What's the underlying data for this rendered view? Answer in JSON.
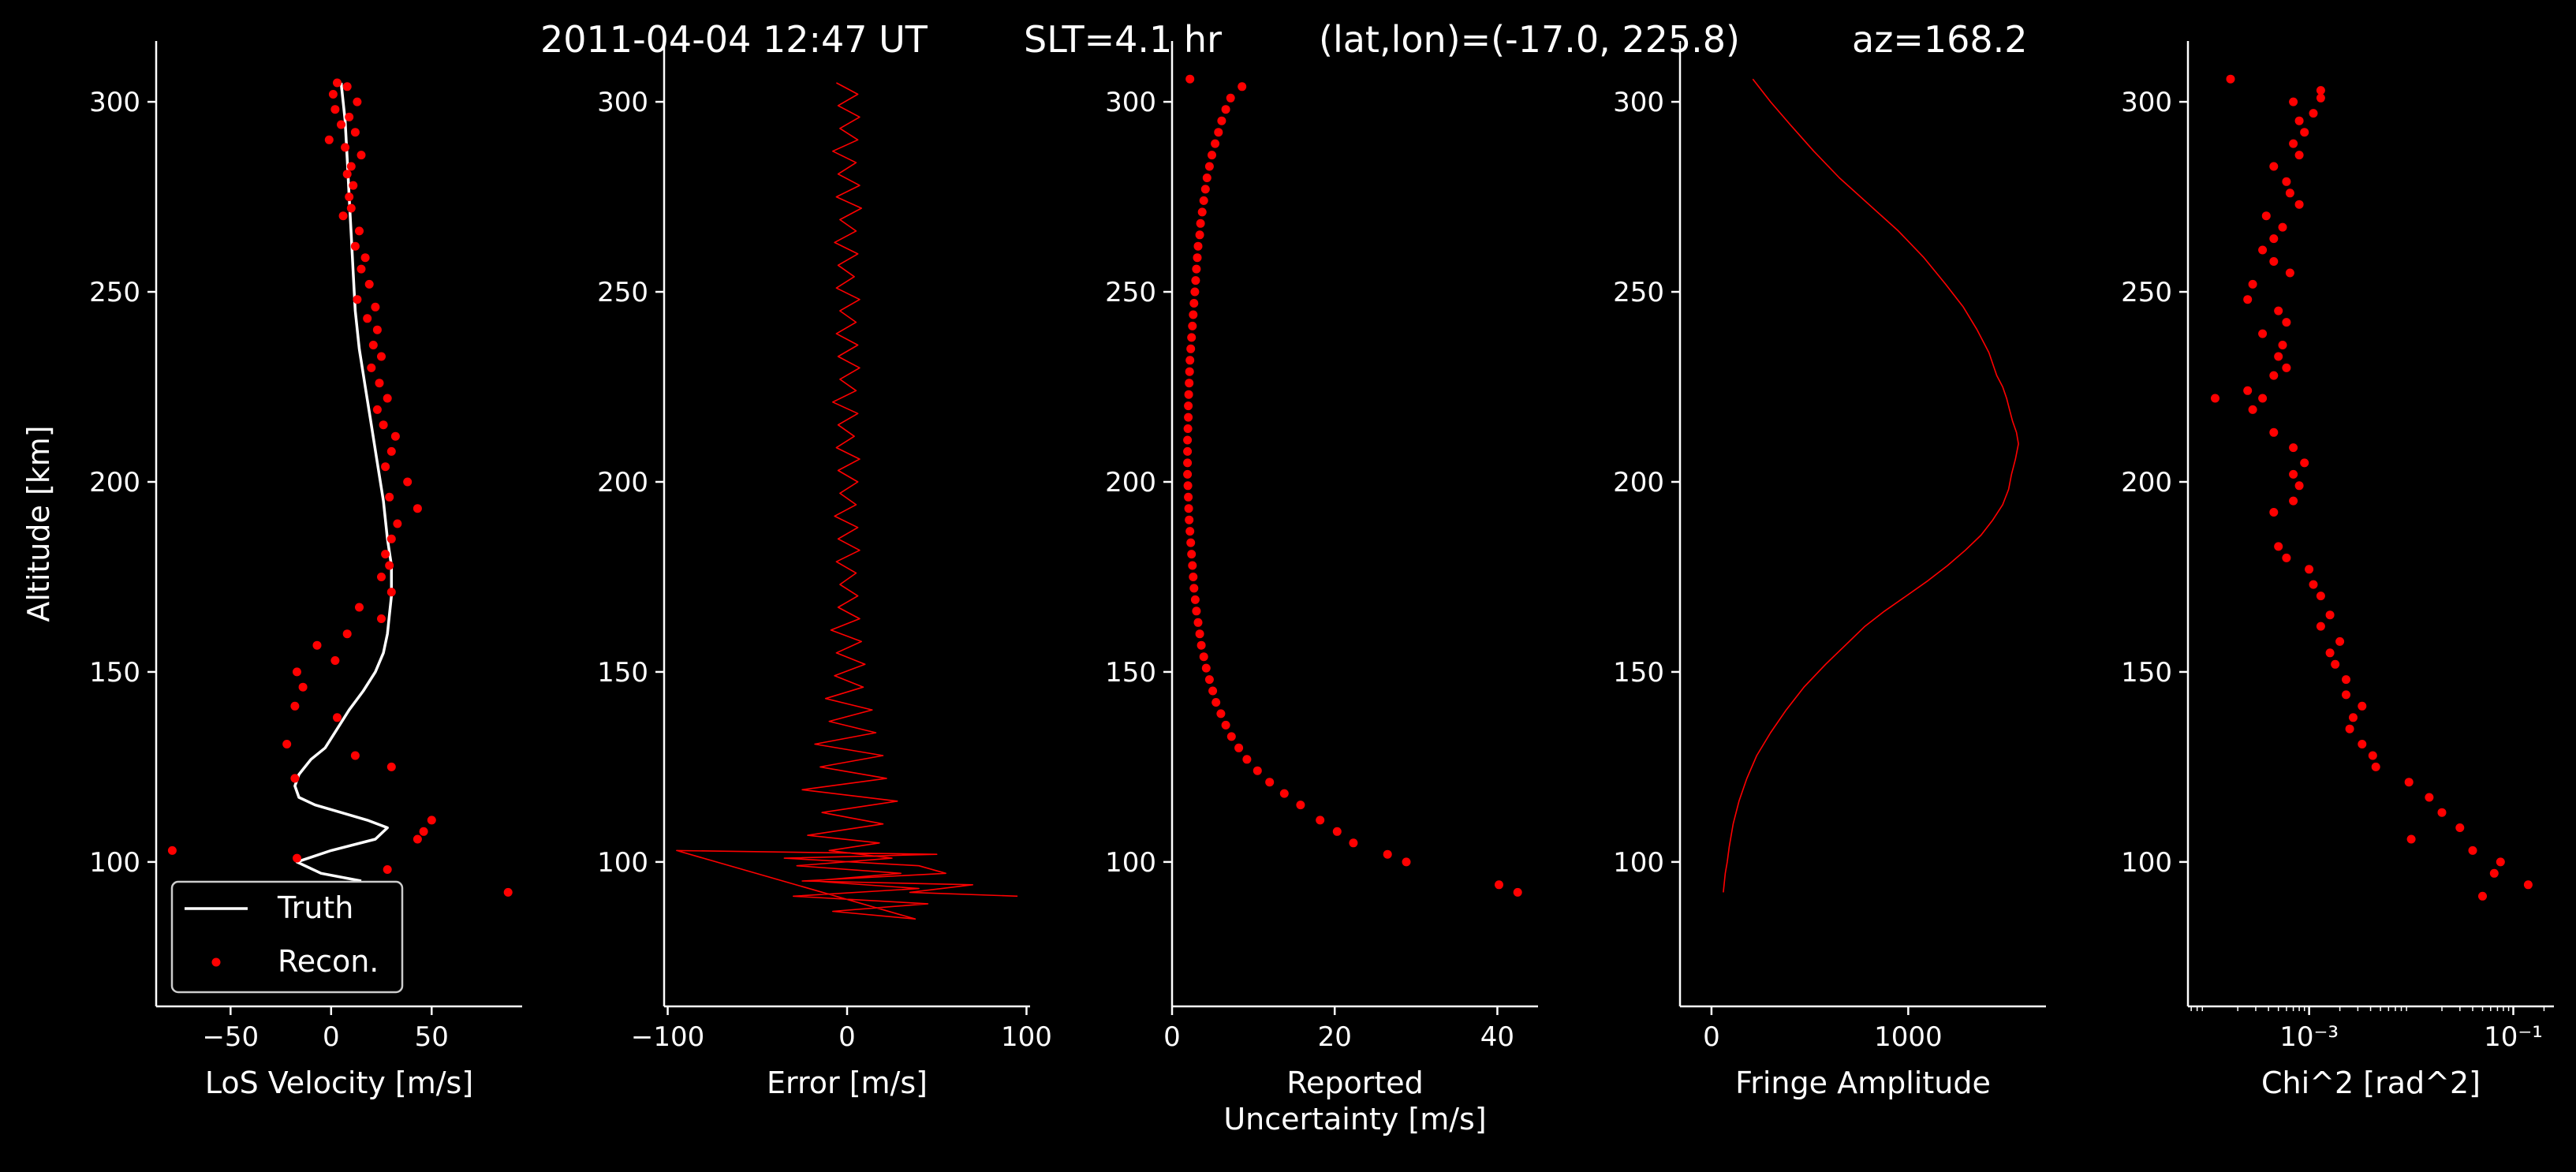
{
  "header": {
    "time": "2011-04-04 12:47 UT",
    "slt": "SLT=4.1 hr",
    "latlon": "(lat,lon)=(-17.0, 225.8)",
    "az": "az=168.2"
  },
  "colors": {
    "background": "#000000",
    "foreground": "#ffffff",
    "recon": "#ff0000",
    "truth": "#ffffff"
  },
  "chart_data": [
    {
      "type": "line",
      "xlabel": "LoS Velocity [m/s]",
      "ylabel": "Altitude [km]",
      "xlim": [
        -87,
        95
      ],
      "ylim": [
        62,
        316
      ],
      "xticks": [
        {
          "v": -50,
          "label": "−50"
        },
        {
          "v": 0,
          "label": "0"
        },
        {
          "v": 50,
          "label": "50"
        }
      ],
      "yticks": [
        100,
        150,
        200,
        250,
        300
      ],
      "legend": {
        "placement": "lower-left",
        "entries": [
          "Truth",
          "Recon."
        ]
      },
      "series": [
        {
          "name": "Truth",
          "style": "line",
          "color": "#ffffff",
          "x": [
            5,
            7,
            8,
            9,
            10,
            11,
            12,
            14,
            17,
            20,
            23,
            26,
            28,
            30,
            30,
            29,
            28,
            26,
            22,
            16,
            9,
            3,
            -3,
            -10,
            -16,
            -18,
            -16,
            -8,
            5,
            18,
            28,
            22,
            0,
            -17,
            -5,
            15
          ],
          "y": [
            305,
            295,
            285,
            275,
            265,
            255,
            245,
            235,
            225,
            215,
            205,
            195,
            185,
            178,
            170,
            165,
            160,
            155,
            150,
            145,
            140,
            135,
            130,
            127,
            123,
            120,
            117,
            115,
            113,
            111,
            109,
            106,
            103,
            100,
            97,
            95
          ]
        },
        {
          "name": "Recon.",
          "style": "scatter",
          "color": "#ff0000",
          "x": [
            3,
            8,
            1,
            13,
            2,
            9,
            5,
            12,
            -1,
            7,
            15,
            10,
            8,
            11,
            9,
            10,
            6,
            14,
            12,
            17,
            15,
            19,
            13,
            22,
            18,
            23,
            21,
            25,
            20,
            24,
            28,
            23,
            26,
            32,
            30,
            27,
            38,
            29,
            43,
            33,
            30,
            27,
            29,
            25,
            30,
            14,
            25,
            8,
            -7,
            2,
            -17,
            -14,
            -18,
            3,
            -22,
            12,
            30,
            -18,
            50,
            46,
            43,
            -79,
            -17,
            28,
            88
          ],
          "y": [
            305,
            304,
            302,
            300,
            298,
            296,
            294,
            292,
            290,
            288,
            286,
            283,
            281,
            278,
            275,
            272,
            270,
            266,
            262,
            259,
            256,
            252,
            248,
            246,
            243,
            240,
            236,
            233,
            230,
            226,
            222,
            219,
            215,
            212,
            208,
            204,
            200,
            196,
            193,
            189,
            185,
            181,
            178,
            175,
            171,
            167,
            164,
            160,
            157,
            153,
            150,
            146,
            141,
            138,
            131,
            128,
            125,
            122,
            111,
            108,
            106,
            103,
            101,
            98,
            92
          ]
        }
      ]
    },
    {
      "type": "line",
      "xlabel": "Error [m/s]",
      "xlim": [
        -102,
        102
      ],
      "ylim": [
        62,
        316
      ],
      "xticks": [
        {
          "v": -100,
          "label": "−100"
        },
        {
          "v": 0,
          "label": "0"
        },
        {
          "v": 100,
          "label": "100"
        }
      ],
      "yticks": [
        100,
        150,
        200,
        250,
        300
      ],
      "series": [
        {
          "style": "line",
          "color": "#ff0000",
          "x": [
            -6,
            6,
            -5,
            7,
            -4,
            6,
            -8,
            5,
            -5,
            7,
            -6,
            8,
            -4,
            5,
            -7,
            6,
            -5,
            4,
            -6,
            7,
            -4,
            5,
            -6,
            6,
            -5,
            7,
            -4,
            5,
            -8,
            6,
            -5,
            4,
            -6,
            7,
            -5,
            6,
            -4,
            5,
            -7,
            6,
            -5,
            7,
            -6,
            5,
            -4,
            6,
            -5,
            7,
            -9,
            8,
            -6,
            10,
            -7,
            9,
            -12,
            14,
            -10,
            16,
            -18,
            20,
            -15,
            22,
            -25,
            28,
            -14,
            20,
            -22,
            18,
            -10,
            25,
            -28,
            30,
            -20,
            40,
            -30,
            45,
            -8,
            38,
            -95,
            50,
            -35,
            40,
            55,
            -25,
            70,
            35,
            95
          ],
          "y": [
            305,
            302,
            299,
            296,
            293,
            290,
            287,
            284,
            281,
            278,
            275,
            272,
            269,
            266,
            263,
            260,
            257,
            254,
            251,
            248,
            245,
            242,
            239,
            236,
            233,
            230,
            227,
            224,
            221,
            218,
            215,
            212,
            209,
            206,
            203,
            200,
            197,
            194,
            191,
            188,
            185,
            182,
            179,
            176,
            173,
            170,
            167,
            164,
            161,
            158,
            155,
            152,
            149,
            146,
            143,
            140,
            137,
            134,
            131,
            128,
            125,
            122,
            119,
            116,
            113,
            110,
            107,
            105,
            103,
            101,
            99,
            97,
            95,
            93,
            91,
            89,
            87,
            85,
            103,
            102,
            101,
            99,
            97,
            95,
            94,
            92,
            91
          ]
        }
      ]
    },
    {
      "type": "scatter",
      "xlabel": "Reported\nUncertainty [m/s]",
      "xlim": [
        0,
        45
      ],
      "ylim": [
        62,
        316
      ],
      "xticks": [
        {
          "v": 0,
          "label": "0"
        },
        {
          "v": 20,
          "label": "20"
        },
        {
          "v": 40,
          "label": "40"
        }
      ],
      "yticks": [
        100,
        150,
        200,
        250,
        300
      ],
      "series": [
        {
          "style": "scatter",
          "color": "#ff0000",
          "x": [
            2.2,
            8.6,
            7.2,
            6.6,
            6.1,
            5.7,
            5.3,
            4.9,
            4.6,
            4.3,
            4.1,
            3.9,
            3.7,
            3.5,
            3.4,
            3.2,
            3.1,
            3.0,
            2.9,
            2.8,
            2.7,
            2.6,
            2.5,
            2.4,
            2.3,
            2.2,
            2.15,
            2.1,
            2.05,
            2.0,
            2.0,
            1.95,
            1.9,
            1.9,
            1.9,
            1.9,
            1.95,
            2.0,
            2.05,
            2.1,
            2.2,
            2.3,
            2.4,
            2.5,
            2.6,
            2.7,
            2.85,
            3.0,
            3.2,
            3.4,
            3.6,
            3.9,
            4.2,
            4.6,
            5.0,
            5.4,
            6.0,
            6.6,
            7.3,
            8.2,
            9.2,
            10.5,
            12.0,
            13.8,
            15.8,
            18.2,
            20.3,
            22.3,
            26.5,
            28.8,
            40.2,
            42.5
          ],
          "y": [
            306,
            304,
            301,
            298,
            295,
            292,
            289,
            286,
            283,
            280,
            277,
            274,
            271,
            268,
            265,
            262,
            259,
            256,
            253,
            250,
            247,
            244,
            241,
            238,
            235,
            232,
            229,
            226,
            223,
            220,
            217,
            214,
            211,
            208,
            205,
            202,
            199,
            196,
            193,
            190,
            187,
            184,
            181,
            178,
            175,
            172,
            169,
            166,
            163,
            160,
            157,
            154,
            151,
            148,
            145,
            142,
            139,
            136,
            133,
            130,
            127,
            124,
            121,
            118,
            115,
            111,
            108,
            105,
            102,
            100,
            94,
            92
          ]
        }
      ]
    },
    {
      "type": "line",
      "xlabel": "Fringe Amplitude",
      "xlim": [
        -160,
        1700
      ],
      "ylim": [
        62,
        316
      ],
      "xticks": [
        {
          "v": 0,
          "label": "0"
        },
        {
          "v": 1000,
          "label": "1000"
        }
      ],
      "yticks": [
        100,
        150,
        200,
        250,
        300
      ],
      "series": [
        {
          "style": "line",
          "color": "#ff0000",
          "x": [
            210,
            300,
            400,
            520,
            650,
            800,
            950,
            1080,
            1190,
            1280,
            1350,
            1410,
            1450,
            1480,
            1500,
            1515,
            1530,
            1550,
            1560,
            1545,
            1525,
            1510,
            1480,
            1430,
            1370,
            1290,
            1200,
            1100,
            990,
            880,
            780,
            700,
            580,
            470,
            380,
            300,
            230,
            180,
            140,
            110,
            90,
            80,
            70,
            60
          ],
          "y": [
            306,
            300,
            294,
            287,
            280,
            273,
            266,
            259,
            252,
            246,
            240,
            234,
            228,
            225,
            222,
            219,
            216,
            213,
            210,
            206,
            202,
            198,
            194,
            190,
            186,
            182,
            178,
            174,
            170,
            166,
            162,
            158,
            152,
            146,
            140,
            134,
            128,
            122,
            116,
            110,
            104,
            100,
            97,
            92
          ]
        }
      ]
    },
    {
      "type": "scatter",
      "xlabel": "Chi^2 [rad^2]",
      "xscale": "log",
      "xlim": [
        6.5e-05,
        0.25
      ],
      "ylim": [
        62,
        316
      ],
      "xticks": [
        {
          "v": 0.001,
          "label": "10⁻³"
        },
        {
          "v": 0.1,
          "label": "10⁻¹"
        }
      ],
      "yticks": [
        100,
        150,
        200,
        250,
        300
      ],
      "series": [
        {
          "style": "scatter",
          "color": "#ff0000",
          "x": [
            0.00017,
            0.0013,
            0.0013,
            0.0007,
            0.0011,
            0.0008,
            0.0009,
            0.0007,
            0.0008,
            0.00045,
            0.0006,
            0.00065,
            0.0008,
            0.00038,
            0.00055,
            0.00045,
            0.00035,
            0.00045,
            0.00065,
            0.00028,
            0.00025,
            0.0005,
            0.0006,
            0.00035,
            0.00012,
            0.00028,
            0.00025,
            0.00035,
            0.00045,
            0.0006,
            0.0005,
            0.00055,
            0.00045,
            0.0007,
            0.0008,
            0.0007,
            0.0009,
            0.0007,
            0.00045,
            0.0005,
            0.0006,
            0.001,
            0.0011,
            0.0013,
            0.0016,
            0.0013,
            0.002,
            0.0016,
            0.0018,
            0.0023,
            0.0023,
            0.0033,
            0.0027,
            0.0025,
            0.0033,
            0.0042,
            0.0045,
            0.0095,
            0.015,
            0.02,
            0.03,
            0.01,
            0.04,
            0.075,
            0.065,
            0.14,
            0.05
          ],
          "y": [
            306,
            303,
            301,
            300,
            297,
            295,
            292,
            289,
            286,
            283,
            279,
            276,
            273,
            270,
            267,
            264,
            261,
            258,
            255,
            252,
            248,
            245,
            242,
            239,
            222,
            219,
            224,
            222,
            228,
            230,
            233,
            236,
            192,
            195,
            199,
            202,
            205,
            209,
            213,
            183,
            180,
            177,
            173,
            170,
            165,
            162,
            158,
            155,
            152,
            148,
            144,
            141,
            138,
            135,
            131,
            128,
            125,
            121,
            117,
            113,
            109,
            106,
            103,
            100,
            97,
            94,
            91
          ]
        }
      ]
    }
  ]
}
